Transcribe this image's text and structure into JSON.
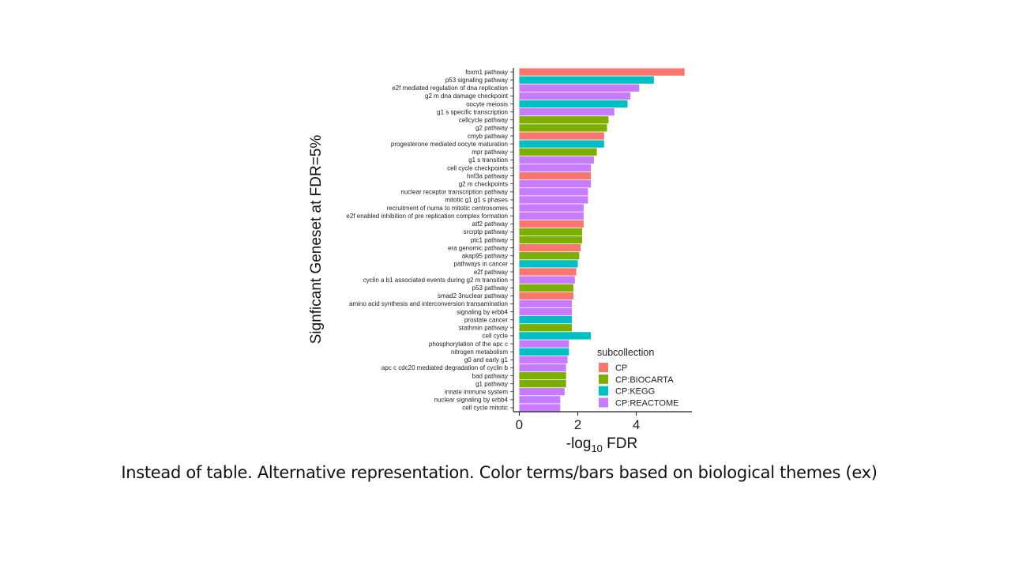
{
  "caption": "Instead of table. Alternative representation. Color terms/bars based on biological themes (ex)",
  "chart_data": {
    "type": "bar",
    "orientation": "horizontal",
    "ylabel": "Signficant Geneset at FDR=5%",
    "xlabel_parts": {
      "prefix": "-log",
      "subscript": "10",
      "suffix": " FDR"
    },
    "xlim": [
      -0.2,
      5.9
    ],
    "xticks": [
      0,
      2,
      4
    ],
    "grid": false,
    "legend": {
      "title": "subcollection",
      "position": "bottom-right",
      "entries": [
        {
          "name": "CP",
          "color": "#F8766D"
        },
        {
          "name": "CP:BIOCARTA",
          "color": "#7CAE00"
        },
        {
          "name": "CP:KEGG",
          "color": "#00BFC4"
        },
        {
          "name": "CP:REACTOME",
          "color": "#C77CFF"
        }
      ]
    },
    "bars": [
      {
        "label": "foxm1 pathway",
        "value": 5.65,
        "group": "CP"
      },
      {
        "label": "p53 signaling pathway",
        "value": 4.6,
        "group": "CP:KEGG"
      },
      {
        "label": "e2f mediated regulation of dna replication",
        "value": 4.1,
        "group": "CP:REACTOME"
      },
      {
        "label": "g2 m dna damage checkpoint",
        "value": 3.8,
        "group": "CP:REACTOME"
      },
      {
        "label": "oocyte meiosis",
        "value": 3.7,
        "group": "CP:KEGG"
      },
      {
        "label": "g1 s specific transcription",
        "value": 3.25,
        "group": "CP:REACTOME"
      },
      {
        "label": "cellcycle pathway",
        "value": 3.05,
        "group": "CP:BIOCARTA"
      },
      {
        "label": "g2 pathway",
        "value": 3.0,
        "group": "CP:BIOCARTA"
      },
      {
        "label": "cmyb pathway",
        "value": 2.9,
        "group": "CP"
      },
      {
        "label": "progesterone mediated oocyte maturation",
        "value": 2.9,
        "group": "CP:KEGG"
      },
      {
        "label": "mpr pathway",
        "value": 2.65,
        "group": "CP:BIOCARTA"
      },
      {
        "label": "g1 s transition",
        "value": 2.55,
        "group": "CP:REACTOME"
      },
      {
        "label": "cell cycle checkpoints",
        "value": 2.45,
        "group": "CP:REACTOME"
      },
      {
        "label": "hnf3a pathway",
        "value": 2.45,
        "group": "CP"
      },
      {
        "label": "g2 m checkpoints",
        "value": 2.45,
        "group": "CP:REACTOME"
      },
      {
        "label": "nuclear receptor transcription pathway",
        "value": 2.35,
        "group": "CP:REACTOME"
      },
      {
        "label": "mitotic g1 g1 s phases",
        "value": 2.35,
        "group": "CP:REACTOME"
      },
      {
        "label": "recruitment of numa to mitotic centrosomes",
        "value": 2.2,
        "group": "CP:REACTOME"
      },
      {
        "label": "e2f enabled inhibition of pre replication complex formation",
        "value": 2.2,
        "group": "CP:REACTOME"
      },
      {
        "label": "atf2 pathway",
        "value": 2.2,
        "group": "CP"
      },
      {
        "label": "srcrptp pathway",
        "value": 2.15,
        "group": "CP:BIOCARTA"
      },
      {
        "label": "ptc1 pathway",
        "value": 2.15,
        "group": "CP:BIOCARTA"
      },
      {
        "label": "era genomic pathway",
        "value": 2.1,
        "group": "CP"
      },
      {
        "label": "akap95 pathway",
        "value": 2.05,
        "group": "CP:BIOCARTA"
      },
      {
        "label": "pathways in cancer",
        "value": 2.0,
        "group": "CP:KEGG"
      },
      {
        "label": "e2f pathway",
        "value": 1.95,
        "group": "CP"
      },
      {
        "label": "cyclin a b1 associated events during g2 m transition",
        "value": 1.9,
        "group": "CP:REACTOME"
      },
      {
        "label": "p53 pathway",
        "value": 1.85,
        "group": "CP:BIOCARTA"
      },
      {
        "label": "smad2 3nuclear pathway",
        "value": 1.85,
        "group": "CP"
      },
      {
        "label": "amino acid synthesis and interconversion transamination",
        "value": 1.8,
        "group": "CP:REACTOME"
      },
      {
        "label": "signaling by erbb4",
        "value": 1.8,
        "group": "CP:REACTOME"
      },
      {
        "label": "prostate cancer",
        "value": 1.8,
        "group": "CP:KEGG"
      },
      {
        "label": "stathmin pathway",
        "value": 1.8,
        "group": "CP:BIOCARTA"
      },
      {
        "label": "cell cycle",
        "value": 2.45,
        "group": "CP:KEGG"
      },
      {
        "label": "phosphorylation of the apc c",
        "value": 1.7,
        "group": "CP:REACTOME"
      },
      {
        "label": "nitrogen metabolism",
        "value": 1.7,
        "group": "CP:KEGG"
      },
      {
        "label": "g0 and early g1",
        "value": 1.65,
        "group": "CP:REACTOME"
      },
      {
        "label": "apc c cdc20 mediated degradation of cyclin b",
        "value": 1.6,
        "group": "CP:REACTOME"
      },
      {
        "label": "bad pathway",
        "value": 1.6,
        "group": "CP:BIOCARTA"
      },
      {
        "label": "g1 pathway",
        "value": 1.6,
        "group": "CP:BIOCARTA"
      },
      {
        "label": "innate immune system",
        "value": 1.55,
        "group": "CP:REACTOME"
      },
      {
        "label": "nuclear signaling by erbb4",
        "value": 1.4,
        "group": "CP:REACTOME"
      },
      {
        "label": "cell cycle mitotic",
        "value": 1.4,
        "group": "CP:REACTOME"
      }
    ]
  }
}
